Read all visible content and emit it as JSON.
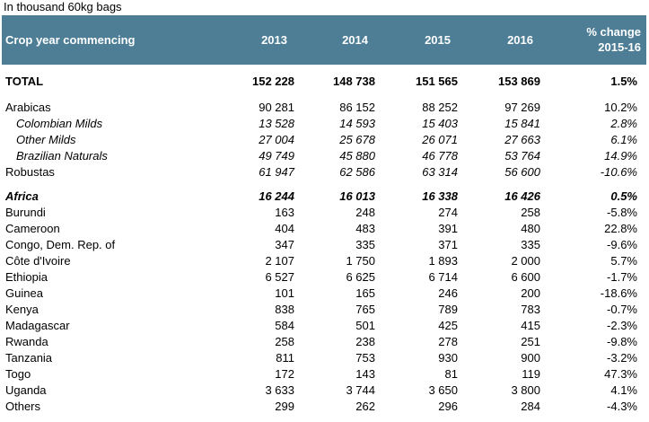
{
  "caption": "In thousand 60kg bags",
  "header": {
    "label": "Crop year commencing",
    "years": [
      "2013",
      "2014",
      "2015",
      "2016"
    ],
    "change_line1": "% change",
    "change_line2": "2015-16"
  },
  "rows": [
    {
      "label": "TOTAL",
      "v": [
        "152 228",
        "148 738",
        "151 565",
        "153 869"
      ],
      "chg": "1.5%"
    },
    {
      "label": "Arabicas",
      "v": [
        "90 281",
        "86 152",
        "88 252",
        "97 269"
      ],
      "chg": "10.2%"
    },
    {
      "label": "Colombian Milds",
      "v": [
        "13 528",
        "14 593",
        "15 403",
        "15 841"
      ],
      "chg": "2.8%"
    },
    {
      "label": "Other Milds",
      "v": [
        "27 004",
        "25 678",
        "26 071",
        "27 663"
      ],
      "chg": "6.1%"
    },
    {
      "label": "Brazilian Naturals",
      "v": [
        "49 749",
        "45 880",
        "46 778",
        "53 764"
      ],
      "chg": "14.9%"
    },
    {
      "label": "Robustas",
      "v": [
        "61 947",
        "62 586",
        "63 314",
        "56 600"
      ],
      "chg": "-10.6%"
    },
    {
      "label": "Africa",
      "v": [
        "16 244",
        "16 013",
        "16 338",
        "16 426"
      ],
      "chg": "0.5%"
    },
    {
      "label": "Burundi",
      "v": [
        "163",
        "248",
        "274",
        "258"
      ],
      "chg": "-5.8%"
    },
    {
      "label": "Cameroon",
      "v": [
        "404",
        "483",
        "391",
        "480"
      ],
      "chg": "22.8%"
    },
    {
      "label": "Congo, Dem. Rep. of",
      "v": [
        "347",
        "335",
        "371",
        "335"
      ],
      "chg": "-9.6%"
    },
    {
      "label": "Côte d'Ivoire",
      "v": [
        "2 107",
        "1 750",
        "1 893",
        "2 000"
      ],
      "chg": "5.7%"
    },
    {
      "label": "Ethiopia",
      "v": [
        "6 527",
        "6 625",
        "6 714",
        "6 600"
      ],
      "chg": "-1.7%"
    },
    {
      "label": "Guinea",
      "v": [
        "101",
        "165",
        "246",
        "200"
      ],
      "chg": "-18.6%"
    },
    {
      "label": "Kenya",
      "v": [
        "838",
        "765",
        "789",
        "783"
      ],
      "chg": "-0.7%"
    },
    {
      "label": "Madagascar",
      "v": [
        "584",
        "501",
        "425",
        "415"
      ],
      "chg": "-2.3%"
    },
    {
      "label": "Rwanda",
      "v": [
        "258",
        "238",
        "278",
        "251"
      ],
      "chg": "-9.8%"
    },
    {
      "label": "Tanzania",
      "v": [
        "811",
        "753",
        "930",
        "900"
      ],
      "chg": "-3.2%"
    },
    {
      "label": "Togo",
      "v": [
        "172",
        "143",
        "81",
        "119"
      ],
      "chg": "47.3%"
    },
    {
      "label": "Uganda",
      "v": [
        "3 633",
        "3 744",
        "3 650",
        "3 800"
      ],
      "chg": "4.1%"
    },
    {
      "label": "Others",
      "v": [
        "299",
        "262",
        "296",
        "284"
      ],
      "chg": "-4.3%"
    }
  ]
}
